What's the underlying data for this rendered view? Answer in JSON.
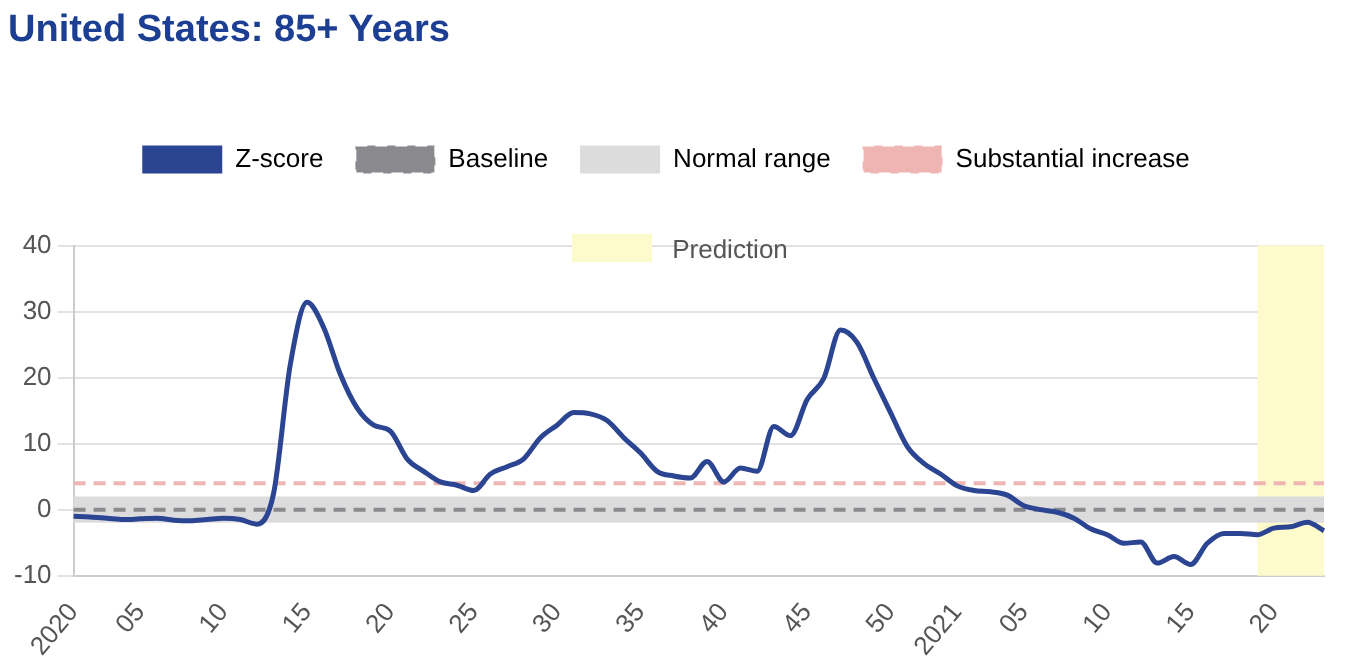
{
  "chart_data": {
    "type": "line",
    "title": "United States: 85+ Years",
    "categories": [
      "2020",
      null,
      null,
      null,
      "05",
      null,
      null,
      null,
      null,
      "10",
      null,
      null,
      null,
      null,
      "15",
      null,
      null,
      null,
      null,
      "20",
      null,
      null,
      null,
      null,
      "25",
      null,
      null,
      null,
      null,
      "30",
      null,
      null,
      null,
      null,
      "35",
      null,
      null,
      null,
      null,
      "40",
      null,
      null,
      null,
      null,
      "45",
      null,
      null,
      null,
      null,
      "50",
      null,
      null,
      null,
      "2021",
      null,
      null,
      null,
      "05",
      null,
      null,
      null,
      null,
      "10",
      null,
      null,
      null,
      null,
      "15",
      null,
      null,
      null,
      null,
      "20",
      null,
      null,
      null
    ],
    "ylim": [
      -10,
      40
    ],
    "yticks": [
      -10,
      0,
      10,
      20,
      30,
      40
    ],
    "series": [
      {
        "name": "Z-score",
        "color": "#2b4592",
        "values": [
          -1,
          -1.1,
          -1.3,
          -1.5,
          -1.4,
          -1.3,
          -1.6,
          -1.7,
          -1.5,
          -1.3,
          -1.5,
          -2.2,
          2.5,
          22,
          31.4,
          27.6,
          20.5,
          15.4,
          12.8,
          11.9,
          7.7,
          5.8,
          4.2,
          3.7,
          2.9,
          5.4,
          6.5,
          7.7,
          10.9,
          12.8,
          14.7,
          14.5,
          13.5,
          10.9,
          8.6,
          5.8,
          5.1,
          4.8,
          7.3,
          4.2,
          6.3,
          5.8,
          12.6,
          11.2,
          16.7,
          19.9,
          27.2,
          25.3,
          19.9,
          14.7,
          9.6,
          7,
          5.4,
          3.6,
          2.9,
          2.7,
          2.2,
          0.6,
          0,
          -0.4,
          -1.3,
          -2.9,
          -3.8,
          -5.1,
          -4.9,
          -8.1,
          -7.1,
          -8.3,
          -5.1,
          -3.6,
          -3.6,
          -3.8,
          -2.8,
          -2.6,
          -1.9,
          -3.2
        ]
      }
    ],
    "ref_lines": [
      {
        "axis": "y",
        "value": 0,
        "label": "Baseline",
        "color": "#8a8a8e",
        "line_style": "dashed"
      },
      {
        "axis": "y",
        "value": 4,
        "label": "Substantial increase",
        "color": "#eeb5b3",
        "line_style": "dashed"
      }
    ],
    "bands": [
      {
        "axis": "y",
        "from": -2,
        "to": 2,
        "label": "Normal range",
        "color": "#dcdcdc"
      }
    ],
    "annotations": [
      "Prediction"
    ],
    "marker": "none",
    "line_style": "solid",
    "grid": "y",
    "legend": "top"
  }
}
